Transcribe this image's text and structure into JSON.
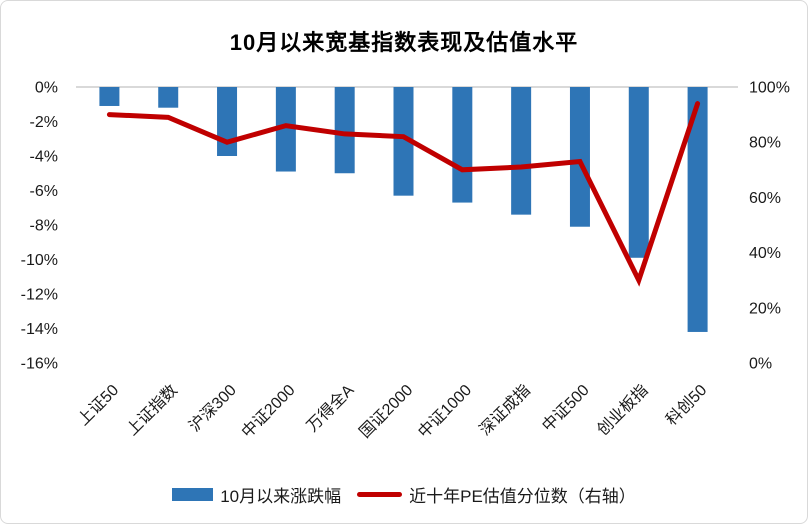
{
  "chart_data": {
    "type": "combo_bar_line",
    "title": "10月以来宽基指数表现及估值水平",
    "categories": [
      "上证50",
      "上证指数",
      "沪深300",
      "中证2000",
      "万得全A",
      "国证2000",
      "中证1000",
      "深证成指",
      "中证500",
      "创业板指",
      "科创50"
    ],
    "series": [
      {
        "name": "10月以来涨跌幅",
        "type": "bar",
        "axis": "left",
        "color": "#2E75B6",
        "values": [
          -1.1,
          -1.2,
          -4.0,
          -4.9,
          -5.0,
          -6.3,
          -6.7,
          -7.4,
          -8.1,
          -9.9,
          -14.2
        ]
      },
      {
        "name": "近十年PE估值分位数（右轴）",
        "type": "line",
        "axis": "right",
        "color": "#C00000",
        "values": [
          90,
          89,
          80,
          86,
          83,
          82,
          70,
          71,
          73,
          30,
          94
        ]
      }
    ],
    "left_axis": {
      "min": -16,
      "max": 0,
      "step": 2,
      "tick_labels": [
        "0%",
        "-2%",
        "-4%",
        "-6%",
        "-8%",
        "-10%",
        "-12%",
        "-14%",
        "-16%"
      ]
    },
    "right_axis": {
      "min": 0,
      "max": 100,
      "step": 20,
      "tick_labels": [
        "100%",
        "80%",
        "60%",
        "40%",
        "20%",
        "0%"
      ]
    },
    "legend_position": "bottom",
    "grid": "zero-line-only",
    "colors": {
      "gridline": "#D9D9D9",
      "text": "#1a1a1a",
      "background": "#FFFFFF",
      "border": "#D9D9D9"
    }
  }
}
